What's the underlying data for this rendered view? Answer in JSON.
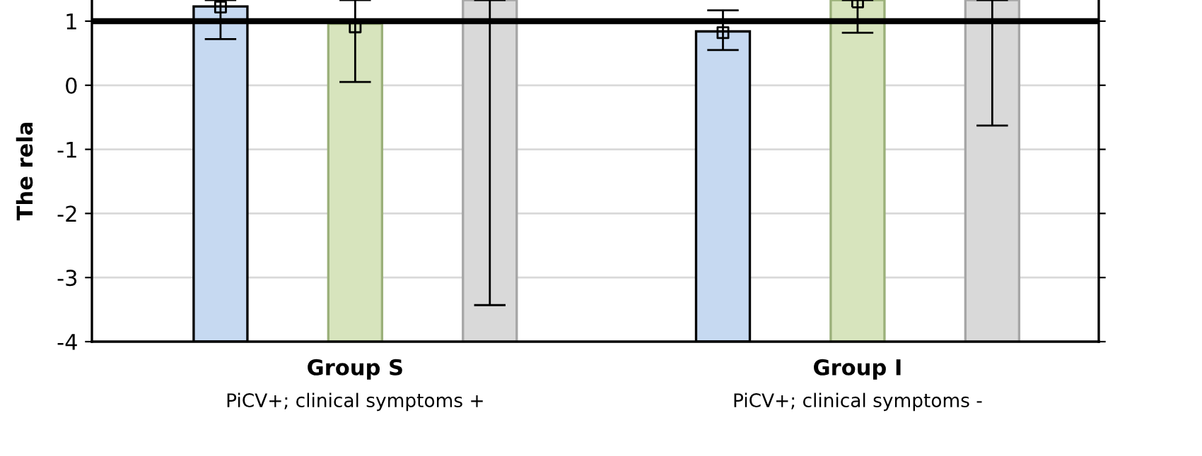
{
  "chart_data": {
    "type": "bar",
    "ylabel": "The rela",
    "categories": [
      "Group S",
      "Group I"
    ],
    "annotations": [
      "PiCV+; clinical symptoms +",
      "PiCV+; clinical symptoms -"
    ],
    "series": [
      {
        "color": "#c6d9f1",
        "base": [
          -4,
          -4
        ],
        "values": [
          5.23,
          4.84
        ]
      },
      {
        "color": "#d7e4bd",
        "base": [
          -4,
          -4
        ],
        "values": [
          4.96,
          5.33
        ]
      },
      {
        "color": "#d9d9d9",
        "base": [
          -4,
          -4
        ],
        "values": [
          5.33,
          5.33
        ],
        "errors": [
          [
            -3.43,
            1.33
          ],
          [
            -0.63,
            1.33
          ]
        ]
      },
      {
        "type": "scatter",
        "color": "#000000",
        "values": [
          1.22,
          0.82
        ],
        "errors": [
          [
            0.72,
            1.33
          ],
          [
            0.55,
            1.17
          ]
        ],
        "marker": "square"
      },
      {
        "type": "scatter",
        "color": "#000000",
        "values": [
          0.91,
          1.3
        ],
        "errors": [
          [
            0.05,
            1.33
          ],
          [
            0.82,
            1.33
          ]
        ],
        "marker": "square"
      }
    ],
    "ylim": [
      -4,
      1.33
    ],
    "yticks": [
      -4,
      -3,
      -2,
      -1,
      0,
      1
    ],
    "ref_lines": [
      {
        "axis": "y",
        "value": 1,
        "color": "#000000"
      }
    ],
    "grid": "y",
    "legend": false
  }
}
